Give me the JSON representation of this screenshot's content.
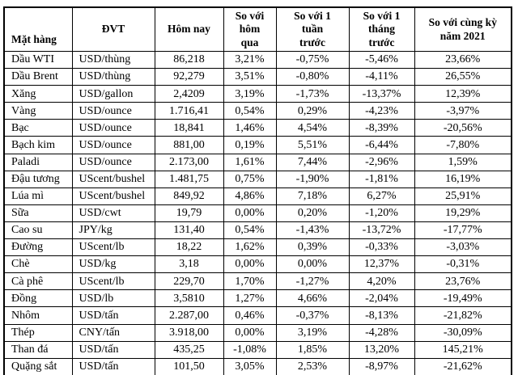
{
  "colors": {
    "background": "#ffffff",
    "text": "#000000",
    "border": "#000000"
  },
  "table": {
    "columns": [
      {
        "key": "name",
        "label": "Mặt hàng"
      },
      {
        "key": "unit",
        "label": "ĐVT"
      },
      {
        "key": "today",
        "label": "Hôm nay"
      },
      {
        "key": "vs_yesterday",
        "label": "So với\nhôm\nqua"
      },
      {
        "key": "vs_week",
        "label": "So với 1\ntuần\ntrước"
      },
      {
        "key": "vs_month",
        "label": "So với 1\ntháng\ntrước"
      },
      {
        "key": "vs_2021",
        "label": "So với cùng kỳ\nnăm 2021"
      }
    ],
    "rows": [
      {
        "name": "Dầu WTI",
        "unit": "USD/thùng",
        "today": "86,218",
        "vs_yesterday": "3,21%",
        "vs_week": "-0,75%",
        "vs_month": "-5,46%",
        "vs_2021": "23,66%"
      },
      {
        "name": "Dầu Brent",
        "unit": "USD/thùng",
        "today": "92,279",
        "vs_yesterday": "3,51%",
        "vs_week": "-0,80%",
        "vs_month": "-4,11%",
        "vs_2021": "26,55%"
      },
      {
        "name": "Xăng",
        "unit": "USD/gallon",
        "today": "2,4209",
        "vs_yesterday": "3,19%",
        "vs_week": "-1,73%",
        "vs_month": "-13,37%",
        "vs_2021": "12,39%"
      },
      {
        "name": "Vàng",
        "unit": "USD/ounce",
        "today": "1.716,41",
        "vs_yesterday": "0,54%",
        "vs_week": "0,29%",
        "vs_month": "-4,23%",
        "vs_2021": "-3,97%"
      },
      {
        "name": "Bạc",
        "unit": "USD/ounce",
        "today": "18,841",
        "vs_yesterday": "1,46%",
        "vs_week": "4,54%",
        "vs_month": "-8,39%",
        "vs_2021": "-20,56%"
      },
      {
        "name": "Bạch kim",
        "unit": "USD/ounce",
        "today": "881,00",
        "vs_yesterday": "0,19%",
        "vs_week": "5,51%",
        "vs_month": "-6,44%",
        "vs_2021": "-7,80%"
      },
      {
        "name": "Paladi",
        "unit": "USD/ounce",
        "today": "2.173,00",
        "vs_yesterday": "1,61%",
        "vs_week": "7,44%",
        "vs_month": "-2,96%",
        "vs_2021": "1,59%"
      },
      {
        "name": "Đậu tương",
        "unit": "UScent/bushel",
        "today": "1.481,75",
        "vs_yesterday": "0,75%",
        "vs_week": "-1,90%",
        "vs_month": "-1,81%",
        "vs_2021": "16,19%"
      },
      {
        "name": "Lúa mì",
        "unit": "UScent/bushel",
        "today": "849,92",
        "vs_yesterday": "4,86%",
        "vs_week": "7,18%",
        "vs_month": "6,27%",
        "vs_2021": "25,91%"
      },
      {
        "name": "Sữa",
        "unit": "USD/cwt",
        "today": "19,79",
        "vs_yesterday": "0,00%",
        "vs_week": "0,20%",
        "vs_month": "-1,20%",
        "vs_2021": "19,29%"
      },
      {
        "name": "Cao su",
        "unit": "JPY/kg",
        "today": "131,40",
        "vs_yesterday": "0,54%",
        "vs_week": "-1,43%",
        "vs_month": "-13,72%",
        "vs_2021": "-17,77%"
      },
      {
        "name": "Đường",
        "unit": "UScent/lb",
        "today": "18,22",
        "vs_yesterday": "1,62%",
        "vs_week": "0,39%",
        "vs_month": "-0,33%",
        "vs_2021": "-3,03%"
      },
      {
        "name": "Chè",
        "unit": "USD/kg",
        "today": "3,18",
        "vs_yesterday": "0,00%",
        "vs_week": "0,00%",
        "vs_month": "12,37%",
        "vs_2021": "-0,31%"
      },
      {
        "name": "Cà phê",
        "unit": "UScent/lb",
        "today": "229,70",
        "vs_yesterday": "1,70%",
        "vs_week": "-1,27%",
        "vs_month": "4,20%",
        "vs_2021": "23,76%"
      },
      {
        "name": "Đồng",
        "unit": "USD/lb",
        "today": "3,5810",
        "vs_yesterday": "1,27%",
        "vs_week": "4,66%",
        "vs_month": "-2,04%",
        "vs_2021": "-19,49%"
      },
      {
        "name": "Nhôm",
        "unit": "USD/tấn",
        "today": "2.287,00",
        "vs_yesterday": "0,46%",
        "vs_week": "-0,37%",
        "vs_month": "-8,13%",
        "vs_2021": "-21,82%"
      },
      {
        "name": "Thép",
        "unit": "CNY/tấn",
        "today": "3.918,00",
        "vs_yesterday": "0,00%",
        "vs_week": "3,19%",
        "vs_month": "-4,28%",
        "vs_2021": "-30,09%"
      },
      {
        "name": "Than đá",
        "unit": "USD/tấn",
        "today": "435,25",
        "vs_yesterday": "-1,08%",
        "vs_week": "1,85%",
        "vs_month": "13,20%",
        "vs_2021": "145,21%"
      },
      {
        "name": "Quặng sắt",
        "unit": "USD/tấn",
        "today": "101,50",
        "vs_yesterday": "3,05%",
        "vs_week": "2,53%",
        "vs_month": "-8,97%",
        "vs_2021": "-21,62%"
      }
    ]
  }
}
